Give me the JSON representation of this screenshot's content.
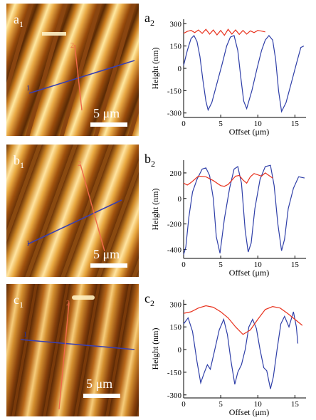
{
  "panels": [
    {
      "image_label": "a",
      "image_sub": "1",
      "plot_label": "a",
      "plot_sub": "2",
      "scale_bar": "5 μm",
      "line1_label": "1",
      "line2_label": "2"
    },
    {
      "image_label": "b",
      "image_sub": "1",
      "plot_label": "b",
      "plot_sub": "2",
      "scale_bar": "5 μm",
      "line1_label": "1",
      "line2_label": "2"
    },
    {
      "image_label": "c",
      "image_sub": "1",
      "plot_label": "c",
      "plot_sub": "2",
      "scale_bar": "5 μm",
      "line1_label": "1",
      "line2_label": "2"
    }
  ],
  "colors": {
    "blue_series": "#2f3fa8",
    "red_series": "#e8321e",
    "afm_dark": "#5a2a05",
    "afm_light": "#ffe8a0"
  },
  "chart_data": [
    {
      "type": "line",
      "xlabel": "Offset (μm)",
      "ylabel": "Height (nm)",
      "xlim": [
        0,
        16.5
      ],
      "ylim": [
        -330,
        330
      ],
      "xticks": [
        0,
        5,
        10,
        15
      ],
      "yticks": [
        300,
        150,
        0,
        -150,
        -300
      ],
      "series": [
        {
          "color": "blue",
          "x": [
            0,
            0.5,
            1.0,
            1.4,
            1.8,
            2.2,
            2.6,
            3.0,
            3.3,
            3.8,
            4.5,
            5.2,
            5.8,
            6.3,
            6.8,
            7.3,
            7.7,
            8.1,
            8.5,
            9.2,
            9.9,
            10.5,
            11.0,
            11.5,
            12.0,
            12.4,
            12.8,
            13.2,
            13.8,
            14.5,
            15.2,
            15.8,
            16.2
          ],
          "y": [
            20,
            120,
            200,
            220,
            180,
            80,
            -80,
            -220,
            -280,
            -230,
            -100,
            30,
            150,
            210,
            220,
            120,
            -60,
            -220,
            -270,
            -150,
            0,
            120,
            190,
            220,
            190,
            60,
            -150,
            -290,
            -230,
            -100,
            30,
            140,
            150
          ]
        },
        {
          "color": "red",
          "x": [
            0,
            0.5,
            1.0,
            1.5,
            2.0,
            2.5,
            3.0,
            3.5,
            4.0,
            4.5,
            5.0,
            5.5,
            6.0,
            6.5,
            7.0,
            7.5,
            8.0,
            8.5,
            9.0,
            9.5,
            10.0,
            10.5,
            11.0
          ],
          "y": [
            235,
            248,
            255,
            240,
            258,
            235,
            262,
            230,
            258,
            225,
            255,
            222,
            262,
            230,
            258,
            228,
            255,
            230,
            252,
            240,
            255,
            250,
            245
          ]
        }
      ]
    },
    {
      "type": "line",
      "xlabel": "Offset (μm)",
      "ylabel": "Height (nm)",
      "xlim": [
        0,
        16.5
      ],
      "ylim": [
        -470,
        300
      ],
      "xticks": [
        0,
        5,
        10,
        15
      ],
      "yticks": [
        200,
        0,
        -200,
        -400
      ],
      "series": [
        {
          "color": "blue",
          "x": [
            0,
            0.3,
            0.7,
            1.2,
            1.8,
            2.5,
            3.0,
            3.5,
            4.0,
            4.4,
            4.9,
            5.5,
            6.2,
            6.8,
            7.3,
            7.8,
            8.3,
            8.7,
            9.1,
            9.6,
            10.3,
            11.0,
            11.7,
            12.2,
            12.7,
            13.2,
            13.6,
            14.1,
            14.8,
            15.5,
            16.3
          ],
          "y": [
            -440,
            -380,
            -150,
            50,
            150,
            230,
            240,
            180,
            0,
            -300,
            -430,
            -160,
            80,
            230,
            250,
            120,
            -250,
            -420,
            -350,
            -80,
            150,
            250,
            260,
            100,
            -200,
            -410,
            -320,
            -80,
            80,
            170,
            160
          ]
        },
        {
          "color": "red",
          "x": [
            0,
            0.5,
            1.0,
            2.0,
            3.0,
            4.0,
            5.0,
            5.5,
            6.0,
            7.0,
            7.5,
            8.0,
            8.5,
            9.0,
            9.5,
            10.0,
            10.5,
            11.0,
            11.5,
            12.0
          ],
          "y": [
            120,
            105,
            125,
            175,
            170,
            140,
            100,
            95,
            110,
            175,
            180,
            145,
            120,
            170,
            195,
            185,
            175,
            200,
            180,
            160
          ]
        }
      ]
    },
    {
      "type": "line",
      "xlabel": "Offset (μm)",
      "ylabel": "Height (nm)",
      "xlim": [
        0,
        16.5
      ],
      "ylim": [
        -320,
        330
      ],
      "xticks": [
        0,
        5,
        10,
        15
      ],
      "yticks": [
        300,
        150,
        0,
        -150,
        -300
      ],
      "series": [
        {
          "color": "blue",
          "x": [
            0,
            0.6,
            1.2,
            1.8,
            2.3,
            2.8,
            3.2,
            3.6,
            4.2,
            4.8,
            5.4,
            5.9,
            6.4,
            6.9,
            7.3,
            7.8,
            8.3,
            8.8,
            9.3,
            9.8,
            10.3,
            10.8,
            11.2,
            11.7,
            12.1,
            12.6,
            13.1,
            13.6,
            14.2,
            14.8,
            15.2,
            15.4
          ],
          "y": [
            170,
            210,
            120,
            -80,
            -220,
            -150,
            -100,
            -130,
            0,
            130,
            200,
            100,
            -80,
            -230,
            -150,
            -100,
            0,
            150,
            200,
            140,
            0,
            -120,
            -140,
            -260,
            -180,
            0,
            170,
            220,
            150,
            250,
            150,
            40
          ]
        },
        {
          "color": "red",
          "x": [
            0,
            1.0,
            2.0,
            3.0,
            4.0,
            5.0,
            6.0,
            7.0,
            8.0,
            9.0,
            10.0,
            11.0,
            12.0,
            13.0,
            14.0,
            15.0,
            16.0
          ],
          "y": [
            240,
            250,
            275,
            290,
            280,
            250,
            210,
            150,
            100,
            130,
            200,
            265,
            285,
            275,
            240,
            200,
            160
          ]
        }
      ]
    }
  ]
}
